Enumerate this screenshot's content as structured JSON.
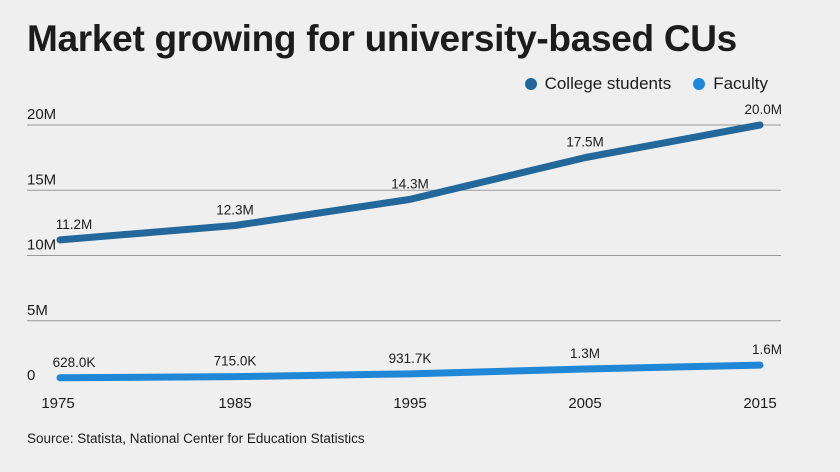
{
  "title": "Market growing for university-based CUs",
  "source": "Source: Statista, National Center for Education Statistics",
  "chart_data": {
    "type": "line",
    "x": [
      "1975",
      "1985",
      "1995",
      "2005",
      "2015"
    ],
    "ylim": [
      0,
      20000000
    ],
    "yticks": [
      {
        "value": 0,
        "label": "0"
      },
      {
        "value": 5000000,
        "label": "5M"
      },
      {
        "value": 10000000,
        "label": "10M"
      },
      {
        "value": 15000000,
        "label": "15M"
      },
      {
        "value": 20000000,
        "label": "20M"
      }
    ],
    "grid": true,
    "legend": "top-right",
    "series": [
      {
        "name": "College students",
        "color": "#23679b",
        "values": [
          11200000,
          12300000,
          14300000,
          17500000,
          20000000
        ],
        "labels": [
          "11.2M",
          "12.3M",
          "14.3M",
          "17.5M",
          "20.0M"
        ]
      },
      {
        "name": "Faculty",
        "color": "#1f87d6",
        "values": [
          628000,
          715000,
          931700,
          1300000,
          1600000
        ],
        "labels": [
          "628.0K",
          "715.0K",
          "931.7K",
          "1.3M",
          "1.6M"
        ]
      }
    ]
  }
}
